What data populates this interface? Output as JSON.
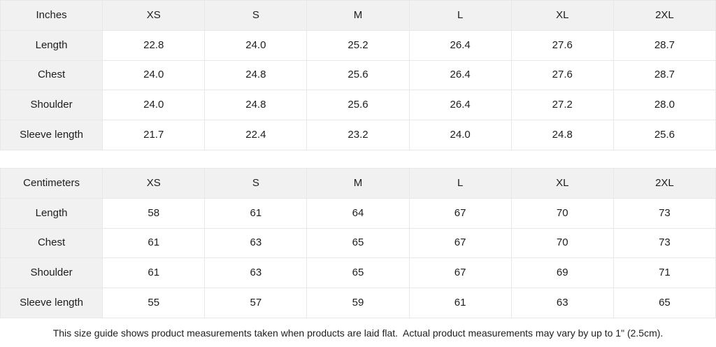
{
  "colors": {
    "header_bg": "#f1f1f1",
    "border": "#e8e8e8",
    "text": "#1d1d1f"
  },
  "tables": [
    {
      "unit_label": "Inches",
      "sizes": [
        "XS",
        "S",
        "M",
        "L",
        "XL",
        "2XL"
      ],
      "rows": [
        {
          "label": "Length",
          "values": [
            "22.8",
            "24.0",
            "25.2",
            "26.4",
            "27.6",
            "28.7"
          ]
        },
        {
          "label": "Chest",
          "values": [
            "24.0",
            "24.8",
            "25.6",
            "26.4",
            "27.6",
            "28.7"
          ]
        },
        {
          "label": "Shoulder",
          "values": [
            "24.0",
            "24.8",
            "25.6",
            "26.4",
            "27.2",
            "28.0"
          ]
        },
        {
          "label": "Sleeve length",
          "values": [
            "21.7",
            "22.4",
            "23.2",
            "24.0",
            "24.8",
            "25.6"
          ]
        }
      ]
    },
    {
      "unit_label": "Centimeters",
      "sizes": [
        "XS",
        "S",
        "M",
        "L",
        "XL",
        "2XL"
      ],
      "rows": [
        {
          "label": "Length",
          "values": [
            "58",
            "61",
            "64",
            "67",
            "70",
            "73"
          ]
        },
        {
          "label": "Chest",
          "values": [
            "61",
            "63",
            "65",
            "67",
            "70",
            "73"
          ]
        },
        {
          "label": "Shoulder",
          "values": [
            "61",
            "63",
            "65",
            "67",
            "69",
            "71"
          ]
        },
        {
          "label": "Sleeve length",
          "values": [
            "55",
            "57",
            "59",
            "61",
            "63",
            "65"
          ]
        }
      ]
    }
  ],
  "footer": {
    "note": "This size guide shows product measurements taken when products are laid flat.  Actual product measurements may vary by up to 1\" (2.5cm)."
  }
}
